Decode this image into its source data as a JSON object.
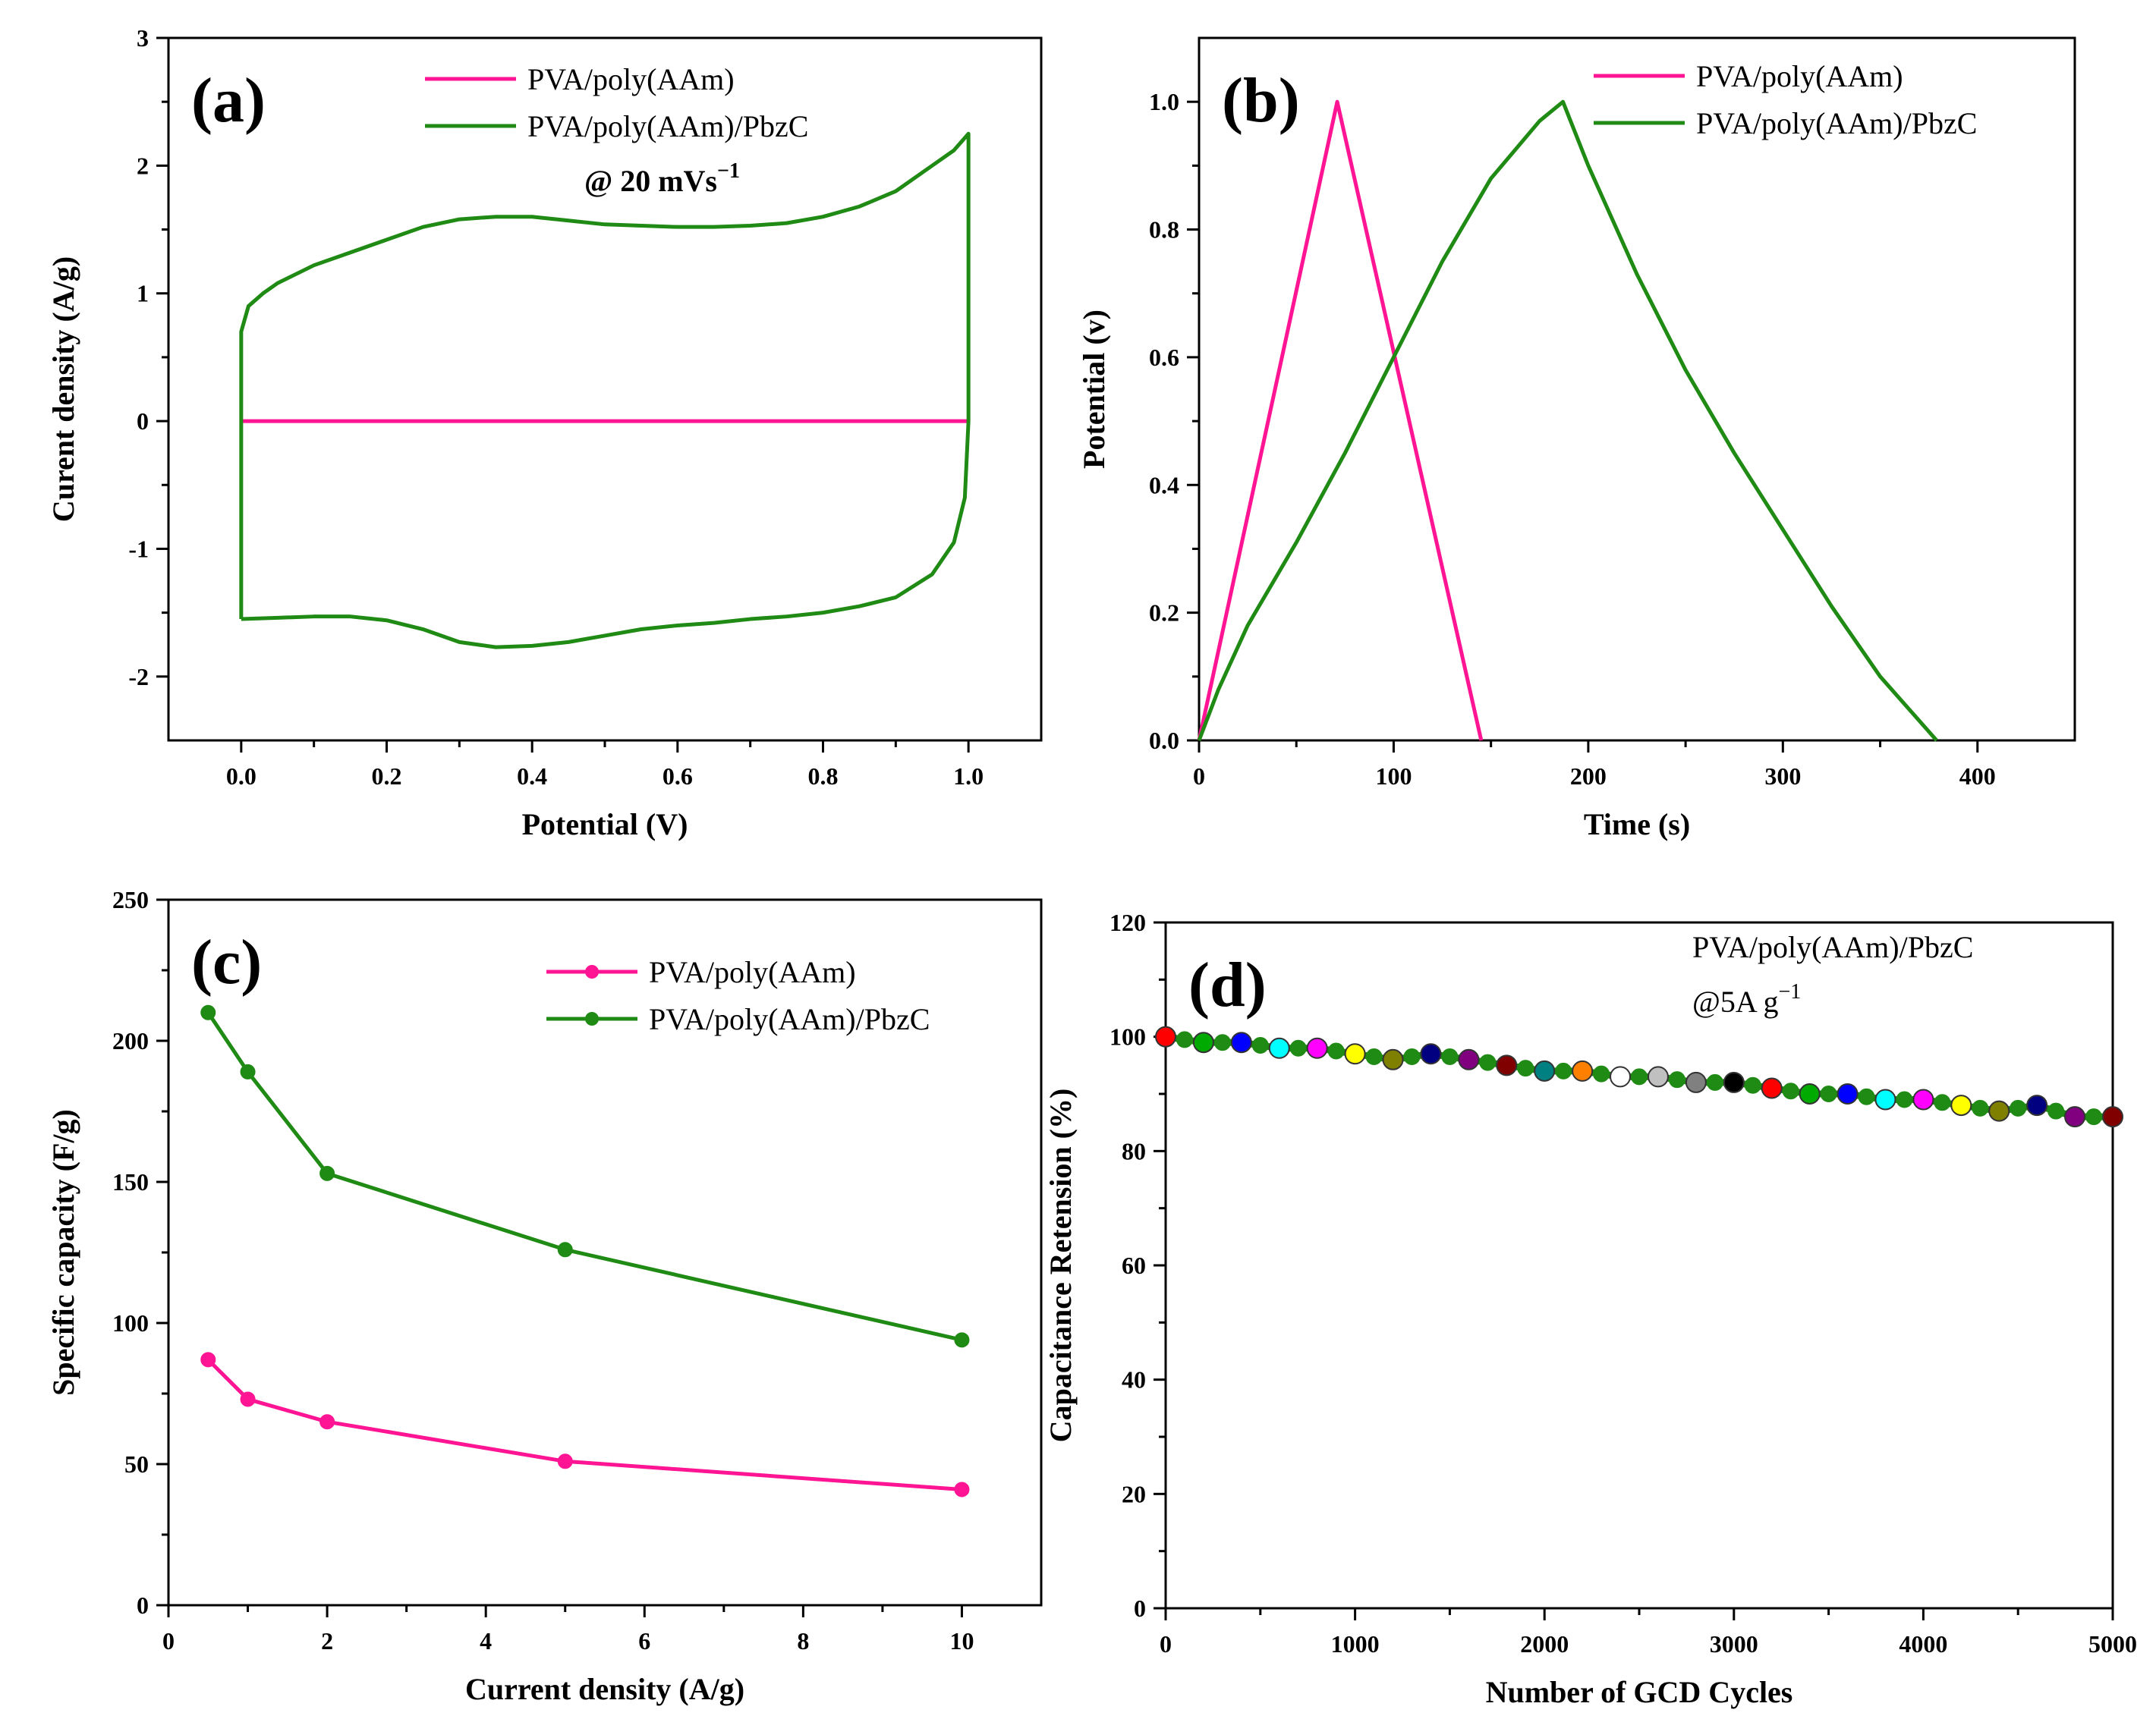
{
  "colors": {
    "pink": "#ff1493",
    "green": "#1f8a14",
    "axis": "#000000",
    "retention_marker_palette": [
      "#ff0000",
      "#00aa00",
      "#0000ff",
      "#00ffff",
      "#ff00ff",
      "#ffff00",
      "#808000",
      "#000080",
      "#800080",
      "#800000",
      "#008080",
      "#ff8000",
      "#ffffff",
      "#c0c0c0",
      "#808080",
      "#000000"
    ]
  },
  "chart_data": [
    {
      "id": "a",
      "type": "line",
      "panel_label": "(a)",
      "title": "",
      "xlabel": "Potential (V)",
      "ylabel": "Curent density (A/g)",
      "xlim": [
        -0.1,
        1.1
      ],
      "ylim": [
        -2.5,
        3
      ],
      "xticks": [
        0.0,
        0.2,
        0.4,
        0.6,
        0.8,
        1.0
      ],
      "xtick_labels": [
        "0.0",
        "0.2",
        "0.4",
        "0.6",
        "0.8",
        "1.0"
      ],
      "yticks": [
        -2,
        -1,
        0,
        1,
        2,
        3
      ],
      "ytick_labels": [
        "-2",
        "-1",
        "0",
        "1",
        "2",
        "3"
      ],
      "annotation": "@ 20 mVs",
      "annotation_superscript": "−1",
      "legend": [
        "PVA/poly(AAm)",
        "PVA/poly(AAm)/PbzC"
      ],
      "legend_position": "top-right",
      "series": [
        {
          "name": "PVA/poly(AAm)",
          "color_key": "pink",
          "x": [
            0.0,
            1.0
          ],
          "y": [
            0.0,
            0.0
          ]
        },
        {
          "name": "PVA/poly(AAm)/PbzC",
          "color_key": "green",
          "x": [
            0.0,
            0.0,
            0.01,
            0.03,
            0.05,
            0.1,
            0.15,
            0.2,
            0.25,
            0.3,
            0.35,
            0.4,
            0.45,
            0.5,
            0.55,
            0.6,
            0.65,
            0.7,
            0.75,
            0.8,
            0.85,
            0.9,
            0.95,
            0.98,
            1.0,
            1.0,
            0.995,
            0.98,
            0.95,
            0.9,
            0.85,
            0.8,
            0.75,
            0.7,
            0.65,
            0.6,
            0.55,
            0.5,
            0.45,
            0.4,
            0.35,
            0.3,
            0.25,
            0.2,
            0.15,
            0.1,
            0.05,
            0.0,
            0.0
          ],
          "y": [
            -1.55,
            0.7,
            0.9,
            1.0,
            1.08,
            1.22,
            1.32,
            1.42,
            1.52,
            1.58,
            1.6,
            1.6,
            1.57,
            1.54,
            1.53,
            1.52,
            1.52,
            1.53,
            1.55,
            1.6,
            1.68,
            1.8,
            2.0,
            2.12,
            2.25,
            0.0,
            -0.6,
            -0.95,
            -1.2,
            -1.38,
            -1.45,
            -1.5,
            -1.53,
            -1.55,
            -1.58,
            -1.6,
            -1.63,
            -1.68,
            -1.73,
            -1.76,
            -1.77,
            -1.73,
            -1.63,
            -1.56,
            -1.53,
            -1.53,
            -1.54,
            -1.55,
            -1.55
          ]
        }
      ]
    },
    {
      "id": "b",
      "type": "line",
      "panel_label": "(b)",
      "title": "",
      "xlabel": "Time (s)",
      "ylabel": "Potential (v)",
      "xlim": [
        0,
        450
      ],
      "ylim": [
        0,
        1.1
      ],
      "xticks": [
        0,
        100,
        200,
        300,
        400
      ],
      "xtick_labels": [
        "0",
        "100",
        "200",
        "300",
        "400"
      ],
      "yticks": [
        0.0,
        0.2,
        0.4,
        0.6,
        0.8,
        1.0
      ],
      "ytick_labels": [
        "0.0",
        "0.2",
        "0.4",
        "0.6",
        "0.8",
        "1.0"
      ],
      "legend": [
        "PVA/poly(AAm)",
        "PVA/poly(AAm)/PbzC"
      ],
      "legend_position": "top-right",
      "series": [
        {
          "name": "PVA/poly(AAm)",
          "color_key": "pink",
          "x": [
            0,
            71,
            145
          ],
          "y": [
            0.0,
            1.0,
            0.0
          ]
        },
        {
          "name": "PVA/poly(AAm)/PbzC",
          "color_key": "green",
          "x": [
            0,
            10,
            25,
            50,
            75,
            100,
            125,
            150,
            175,
            187,
            200,
            225,
            250,
            275,
            300,
            325,
            350,
            379
          ],
          "y": [
            0.0,
            0.08,
            0.18,
            0.31,
            0.45,
            0.6,
            0.75,
            0.88,
            0.97,
            1.0,
            0.9,
            0.73,
            0.58,
            0.45,
            0.33,
            0.21,
            0.1,
            0.0
          ]
        }
      ]
    },
    {
      "id": "c",
      "type": "line",
      "panel_label": "(c)",
      "title": "",
      "xlabel": "Current density (A/g)",
      "ylabel": "Specific capacity (F/g)",
      "xlim": [
        0,
        11
      ],
      "ylim": [
        0,
        250
      ],
      "xticks": [
        0,
        2,
        4,
        6,
        8,
        10
      ],
      "xtick_labels": [
        "0",
        "2",
        "4",
        "6",
        "8",
        "10"
      ],
      "yticks": [
        0,
        50,
        100,
        150,
        200,
        250
      ],
      "ytick_labels": [
        "0",
        "50",
        "100",
        "150",
        "200",
        "250"
      ],
      "legend": [
        "PVA/poly(AAm)",
        "PVA/poly(AAm)/PbzC"
      ],
      "legend_position": "top-right",
      "series": [
        {
          "name": "PVA/poly(AAm)",
          "color_key": "pink",
          "x": [
            0.5,
            1,
            2,
            5,
            10
          ],
          "y": [
            87,
            73,
            65,
            51,
            41
          ]
        },
        {
          "name": "PVA/poly(AAm)/PbzC",
          "color_key": "green",
          "x": [
            0.5,
            1,
            2,
            5,
            10
          ],
          "y": [
            210,
            189,
            153,
            126,
            94
          ]
        }
      ]
    },
    {
      "id": "d",
      "type": "scatter",
      "panel_label": "(d)",
      "title": "",
      "xlabel": "Number of GCD Cycles",
      "ylabel": "Capacitance Retension (%)",
      "xlim": [
        0,
        5000
      ],
      "ylim": [
        0,
        120
      ],
      "xticks": [
        0,
        1000,
        2000,
        3000,
        4000,
        5000
      ],
      "xtick_labels": [
        "0",
        "1000",
        "2000",
        "3000",
        "4000",
        "5000"
      ],
      "yticks": [
        0,
        20,
        40,
        60,
        80,
        100,
        120
      ],
      "ytick_labels": [
        "0",
        "20",
        "40",
        "60",
        "80",
        "100",
        "120"
      ],
      "annotation_1": "PVA/poly(AAm)/PbzC",
      "annotation_2": "@5A  g",
      "annotation_2_superscript": "−1",
      "series": [
        {
          "name": "PVA/poly(AAm)/PbzC",
          "color_key": "green",
          "x": [
            0,
            100,
            200,
            300,
            400,
            500,
            600,
            700,
            800,
            900,
            1000,
            1100,
            1200,
            1300,
            1400,
            1500,
            1600,
            1700,
            1800,
            1900,
            2000,
            2100,
            2200,
            2300,
            2400,
            2500,
            2600,
            2700,
            2800,
            2900,
            3000,
            3100,
            3200,
            3300,
            3400,
            3500,
            3600,
            3700,
            3800,
            3900,
            4000,
            4100,
            4200,
            4300,
            4400,
            4500,
            4600,
            4700,
            4800,
            4900,
            5000
          ],
          "y": [
            100,
            99.5,
            99,
            99,
            99,
            98.5,
            98,
            98,
            98,
            97.5,
            97,
            96.5,
            96,
            96.5,
            97,
            96.5,
            96,
            95.5,
            95,
            94.5,
            94,
            94,
            94,
            93.5,
            93,
            93,
            93,
            92.5,
            92,
            92,
            92,
            91.5,
            91,
            90.5,
            90,
            90,
            90,
            89.5,
            89,
            89,
            89,
            88.5,
            88,
            87.5,
            87,
            87.5,
            88,
            87,
            86,
            86,
            86
          ]
        }
      ],
      "highlight_every": 200
    }
  ]
}
